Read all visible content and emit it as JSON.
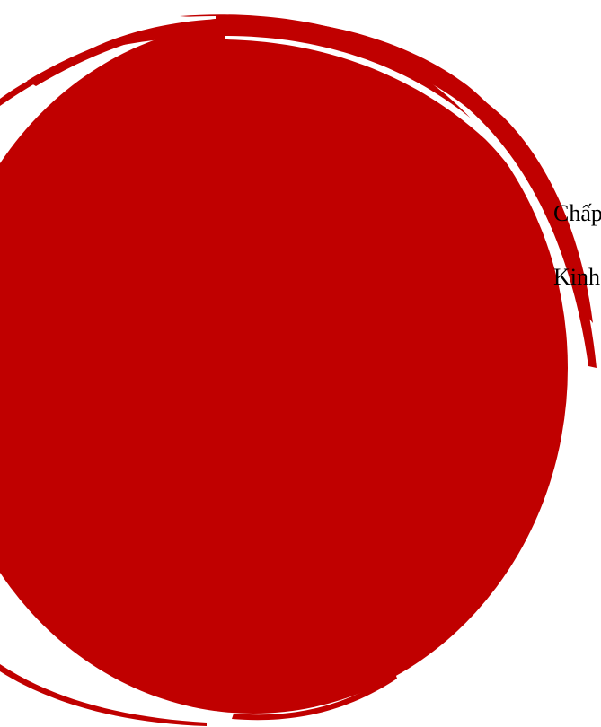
{
  "colors": {
    "background": "#ffffff",
    "circle": "#c00000",
    "text": "#000000"
  },
  "decoration": {
    "shape": "brush-stroke-circle-icon"
  },
  "text_lines": [
    "Chấp",
    "Kinh"
  ]
}
